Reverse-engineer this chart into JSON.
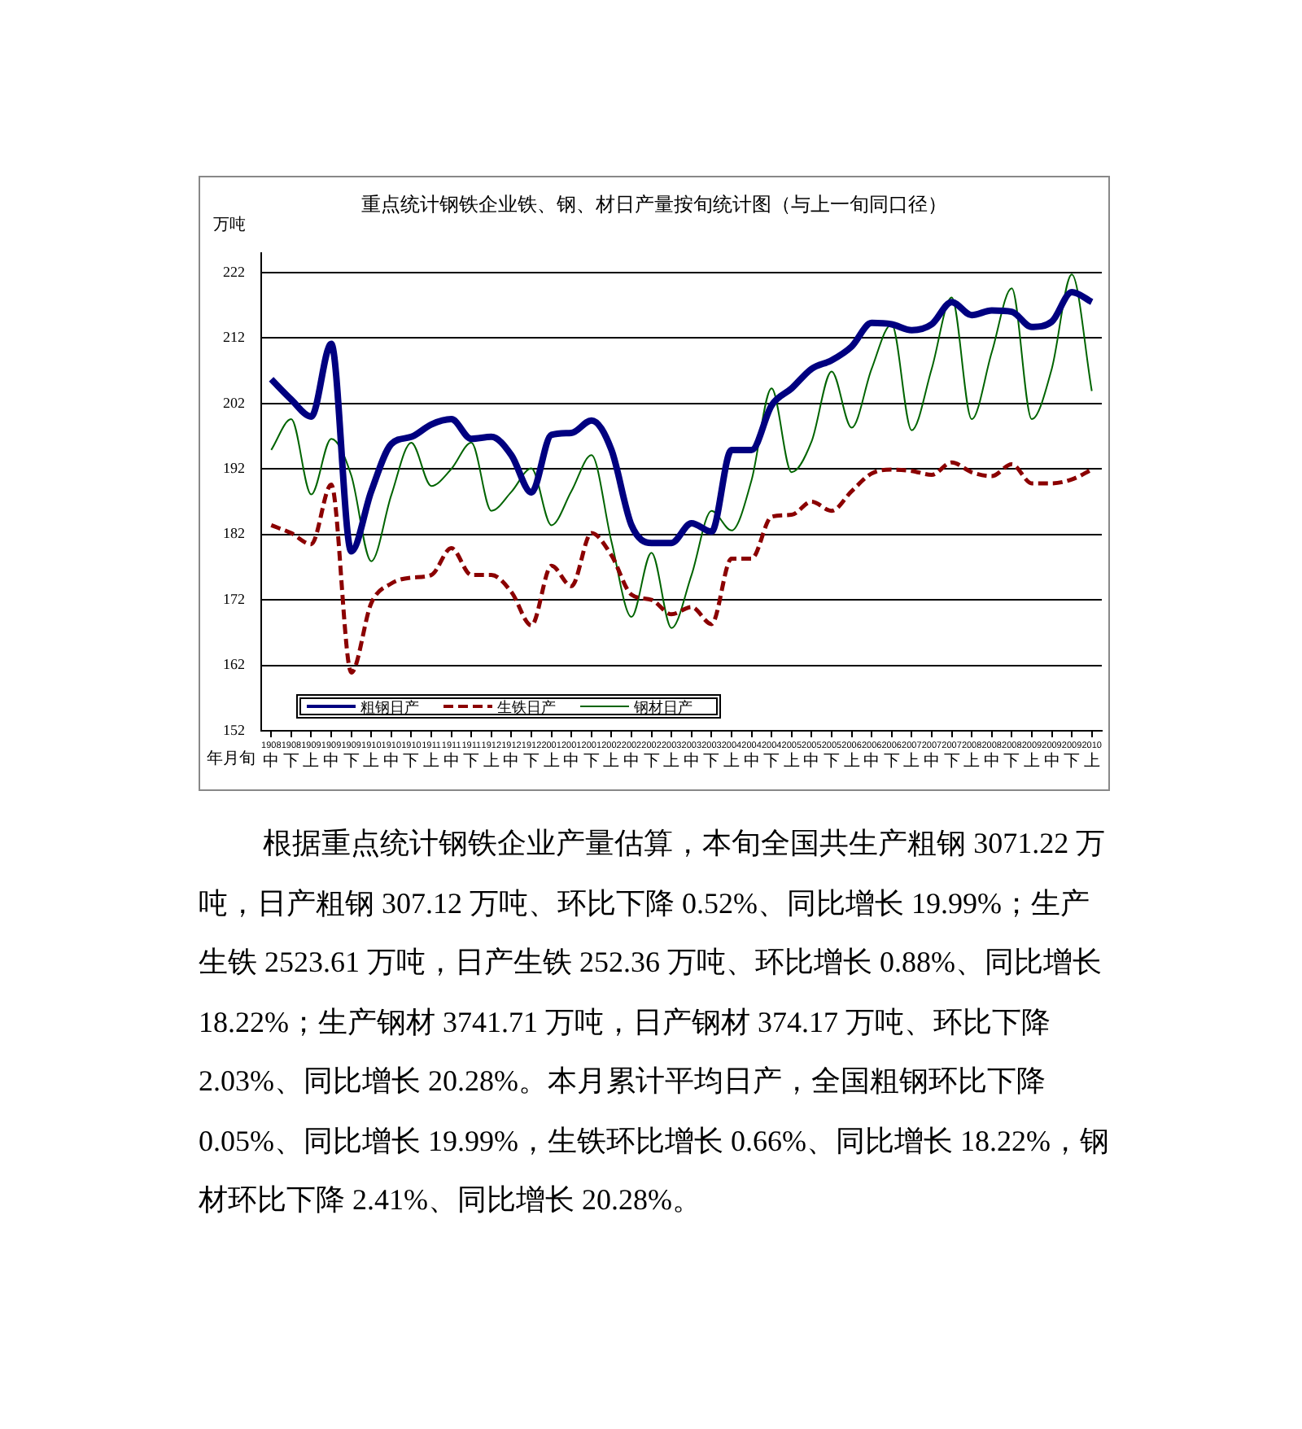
{
  "chart_data": {
    "type": "line",
    "title": "重点统计钢铁企业铁、钢、材日产量按旬统计图（与上一旬同口径）",
    "ylabel": "万吨",
    "xlabel": "年月旬",
    "categories": [
      "1908\n中",
      "1908\n下",
      "1909\n上",
      "1909\n中",
      "1909\n下",
      "1910\n上",
      "1910\n中",
      "1910\n下",
      "1911\n上",
      "1911\n中",
      "1911\n下",
      "1912\n上",
      "1912\n中",
      "1912\n下",
      "2001\n上",
      "2001\n中",
      "2001\n下",
      "2002\n上",
      "2002\n中",
      "2002\n下",
      "2003\n上",
      "2003\n中",
      "2003\n下",
      "2004\n上",
      "2004\n中",
      "2004\n下",
      "2005\n上",
      "2005\n中",
      "2005\n下",
      "2006\n上",
      "2006\n中",
      "2006\n下",
      "2007\n上",
      "2007\n中",
      "2007\n下",
      "2008\n上",
      "2008\n中",
      "2008\n下",
      "2009\n上",
      "2009\n中",
      "2009\n下",
      "2010\n上"
    ],
    "series": [
      {
        "name": "粗钢日产",
        "color": "#000080",
        "line_style": "solid",
        "values": [
          205.7,
          202.6,
          200.0,
          211.1,
          179.4,
          188.6,
          195.8,
          196.9,
          198.8,
          199.6,
          196.6,
          196.9,
          194.1,
          188.4,
          197.2,
          197.5,
          199.4,
          194.9,
          183.4,
          180.7,
          180.7,
          183.7,
          182.4,
          194.9,
          194.9,
          201.7,
          204.3,
          207.3,
          208.6,
          210.7,
          214.3,
          214.1,
          213.2,
          214.1,
          217.5,
          215.5,
          216.2,
          216.0,
          213.7,
          214.5,
          219.0,
          217.5
        ]
      },
      {
        "name": "生铁日产",
        "color": "#8b0000",
        "line_style": "dashed",
        "values": [
          183.4,
          182.2,
          180.5,
          189.6,
          160.9,
          171.5,
          174.5,
          175.4,
          175.8,
          179.9,
          175.8,
          175.8,
          173.2,
          168.1,
          177.2,
          174.1,
          182.2,
          178.8,
          172.8,
          172.0,
          169.8,
          170.9,
          168.3,
          178.3,
          178.3,
          184.7,
          185.0,
          187.0,
          185.6,
          188.6,
          191.3,
          191.9,
          191.7,
          191.1,
          193.0,
          191.5,
          190.9,
          192.7,
          189.8,
          189.8,
          190.4,
          191.9
        ]
      },
      {
        "name": "钢材日产",
        "color": "#006400",
        "line_style": "solid",
        "values": [
          194.9,
          199.6,
          188.1,
          196.6,
          191.0,
          177.9,
          188.0,
          196.0,
          189.4,
          192.0,
          196.0,
          185.6,
          188.5,
          192.1,
          183.4,
          188.6,
          194.1,
          180.9,
          169.4,
          179.2,
          167.7,
          175.8,
          185.6,
          182.6,
          190.3,
          204.3,
          191.5,
          196.2,
          206.9,
          198.3,
          207.3,
          214.1,
          197.9,
          207.3,
          218.2,
          199.6,
          209.8,
          219.6,
          199.6,
          207.3,
          221.7,
          203.9
        ]
      }
    ],
    "ylim": [
      152,
      225
    ],
    "yticks": [
      152,
      162,
      172,
      182,
      192,
      202,
      212,
      222
    ],
    "grid": "y",
    "legend": "bottom left",
    "marker": "none",
    "annotations": [
      "根据重点统计钢铁企业产量估算，本旬全国共生产粗钢 3071.22 万吨，日产粗钢 307.12 万吨、环比下降 0.52%、同比增长 19.99%；生产生铁 2523.61 万吨，日产生铁 252.36 万吨、环比增长 0.88%、同比增长 18.22%；生产钢材 3741.71 万吨，日产钢材 374.17 万吨、环比下降 2.03%、同比增长 20.28%。本月累计平均日产，全国粗钢环比下降 0.05%、同比增长 19.99%，生铁环比增长 0.66%、同比增长 18.22%，钢材环比下降 2.41%、同比增长 20.28%。"
    ]
  }
}
